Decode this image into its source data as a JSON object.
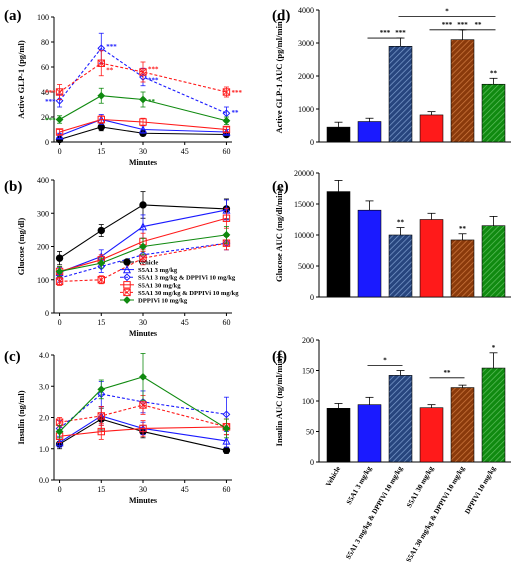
{
  "colors": {
    "vehicle": "#000000",
    "s5a1_3": "#1a1aff",
    "s5a1_3_dpp": "#1a1aff",
    "s5a1_30": "#ff1a1a",
    "s5a1_30_dpp": "#ff1a1a",
    "dpp": "#108a10",
    "bar_dpp_combo3": "#27457e",
    "bar_dpp_combo30": "#8a3a0b"
  },
  "legend_b": [
    {
      "key": "vehicle",
      "label": "Vehicle",
      "marker": "circle",
      "dash": false
    },
    {
      "key": "s5a1_3",
      "label": "S5A1 3 mg/kg",
      "marker": "triangle",
      "dash": false
    },
    {
      "key": "s5a1_3_dpp",
      "label": "S5A1 3 mg/kg & DPPIVi 10 mg/kg",
      "marker": "diamond",
      "dash": true
    },
    {
      "key": "s5a1_30",
      "label": "S5A1 30 mg/kg",
      "marker": "square",
      "dash": false
    },
    {
      "key": "s5a1_30_dpp",
      "label": "S5A1 30 mg/kg & DPPIVi 10 mg/kg",
      "marker": "squarex",
      "dash": true
    },
    {
      "key": "dpp",
      "label": "DPPIVi 10 mg/kg",
      "marker": "diamondfill",
      "dash": false
    }
  ],
  "chart_data": [
    {
      "panel": "(a)",
      "type": "line",
      "xlabel": "Minutes",
      "ylabel": "Active GLP-1 (pg/ml)",
      "xticks": [
        0,
        15,
        30,
        45,
        60
      ],
      "ylim": [
        0,
        100
      ],
      "yticks": [
        0,
        20,
        40,
        60,
        80,
        100
      ],
      "x": [
        0,
        15,
        30,
        60
      ],
      "series": [
        {
          "key": "vehicle",
          "values": [
            2,
            12,
            7,
            6
          ],
          "err": [
            1,
            3,
            2,
            1
          ]
        },
        {
          "key": "s5a1_3",
          "values": [
            5,
            18,
            10,
            8
          ],
          "err": [
            2,
            4,
            3,
            2
          ]
        },
        {
          "key": "s5a1_3_dpp",
          "values": [
            33,
            75,
            52,
            23
          ],
          "err": [
            5,
            12,
            7,
            5
          ]
        },
        {
          "key": "s5a1_30",
          "values": [
            8,
            18,
            16,
            10
          ],
          "err": [
            2,
            3,
            3,
            2
          ]
        },
        {
          "key": "s5a1_30_dpp",
          "values": [
            40,
            63,
            56,
            40
          ],
          "err": [
            6,
            10,
            8,
            4
          ]
        },
        {
          "key": "dpp",
          "values": [
            18,
            37,
            34,
            17
          ],
          "err": [
            3,
            6,
            6,
            3
          ]
        }
      ],
      "annotations": [
        {
          "x": 0,
          "y": 40,
          "text": "***",
          "color": "s5a1_30_dpp",
          "side": "left"
        },
        {
          "x": 0,
          "y": 33,
          "text": "***",
          "color": "s5a1_3_dpp",
          "side": "left"
        },
        {
          "x": 0,
          "y": 18,
          "text": "***",
          "color": "dpp",
          "side": "left"
        },
        {
          "x": 15,
          "y": 77,
          "text": "***",
          "color": "s5a1_3_dpp",
          "side": "right"
        },
        {
          "x": 15,
          "y": 58,
          "text": "**",
          "color": "s5a1_30_dpp",
          "side": "right"
        },
        {
          "x": 30,
          "y": 59,
          "text": "***",
          "color": "s5a1_30_dpp",
          "side": "right"
        },
        {
          "x": 30,
          "y": 50,
          "text": "***",
          "color": "s5a1_3_dpp",
          "side": "right"
        },
        {
          "x": 30,
          "y": 33,
          "text": "**",
          "color": "dpp",
          "side": "right"
        },
        {
          "x": 60,
          "y": 40,
          "text": "***",
          "color": "s5a1_30_dpp",
          "side": "right"
        },
        {
          "x": 60,
          "y": 24,
          "text": "**",
          "color": "s5a1_3_dpp",
          "side": "right"
        }
      ]
    },
    {
      "panel": "(b)",
      "type": "line",
      "xlabel": "Minutes",
      "ylabel": "Glucose (mg/dl)",
      "xticks": [
        0,
        15,
        30,
        45,
        60
      ],
      "ylim": [
        0,
        400
      ],
      "yticks": [
        0,
        100,
        200,
        300,
        400
      ],
      "x": [
        0,
        15,
        30,
        60
      ],
      "series": [
        {
          "key": "vehicle",
          "values": [
            165,
            248,
            325,
            313
          ],
          "err": [
            20,
            18,
            40,
            30
          ]
        },
        {
          "key": "s5a1_3",
          "values": [
            122,
            170,
            260,
            310
          ],
          "err": [
            15,
            20,
            35,
            30
          ]
        },
        {
          "key": "s5a1_3_dpp",
          "values": [
            105,
            140,
            175,
            210
          ],
          "err": [
            12,
            18,
            20,
            20
          ]
        },
        {
          "key": "s5a1_30",
          "values": [
            125,
            160,
            215,
            285
          ],
          "err": [
            15,
            15,
            25,
            30
          ]
        },
        {
          "key": "s5a1_30_dpp",
          "values": [
            95,
            100,
            165,
            210
          ],
          "err": [
            12,
            12,
            20,
            20
          ]
        },
        {
          "key": "dpp",
          "values": [
            125,
            150,
            200,
            235
          ],
          "err": [
            15,
            15,
            25,
            25
          ]
        }
      ],
      "annotations": []
    },
    {
      "panel": "(c)",
      "type": "line",
      "xlabel": "Minutes",
      "ylabel": "Insulin (ng/ml)",
      "xticks": [
        0,
        15,
        30,
        45,
        60
      ],
      "ylim": [
        0.0,
        4.0
      ],
      "yticks": [
        "0.0",
        "1.0",
        "2.0",
        "3.0",
        "4.0"
      ],
      "x": [
        0,
        15,
        30,
        60
      ],
      "series": [
        {
          "key": "vehicle",
          "values": [
            1.15,
            1.95,
            1.55,
            0.95
          ],
          "err": [
            0.15,
            0.35,
            0.2,
            0.1
          ]
        },
        {
          "key": "s5a1_3",
          "values": [
            1.2,
            2.05,
            1.65,
            1.25
          ],
          "err": [
            0.15,
            0.3,
            0.2,
            0.2
          ]
        },
        {
          "key": "s5a1_3_dpp",
          "values": [
            1.65,
            2.75,
            2.5,
            2.1
          ],
          "err": [
            0.25,
            0.4,
            0.35,
            0.55
          ]
        },
        {
          "key": "s5a1_30",
          "values": [
            1.4,
            1.55,
            1.65,
            1.7
          ],
          "err": [
            0.2,
            0.25,
            0.25,
            0.25
          ]
        },
        {
          "key": "s5a1_30_dpp",
          "values": [
            1.85,
            2.05,
            2.4,
            1.7
          ],
          "err": [
            0.15,
            0.3,
            0.3,
            0.25
          ]
        },
        {
          "key": "dpp",
          "values": [
            1.55,
            2.9,
            3.3,
            1.65
          ],
          "err": [
            0.2,
            0.3,
            0.75,
            0.3
          ]
        }
      ],
      "annotations": []
    },
    {
      "panel": "(d)",
      "type": "bar",
      "ylabel": "Active GLP-1 AUC (pg/ml/min)",
      "ylim": [
        0,
        4000
      ],
      "yticks": [
        0,
        1000,
        2000,
        3000,
        4000
      ],
      "categories": [
        "Vehicle",
        "S5A1 3 mg/kg",
        "S5A1 3 mg/kg & DPPIVi 10 mg/kg",
        "S5A1 30 mg/kg",
        "S5A1 30 mg/kg & DPPIVi 10 mg/kg",
        "DPPIVi 10 mg/kg"
      ],
      "values": [
        450,
        620,
        2900,
        820,
        3100,
        1750
      ],
      "err": [
        150,
        100,
        250,
        100,
        300,
        180
      ],
      "stars": [
        "",
        "",
        "***",
        "",
        "***",
        "**"
      ],
      "brackets": [
        {
          "from": 1,
          "to": 2,
          "y": 3150,
          "text": "***"
        },
        {
          "from": 3,
          "to": 4,
          "y": 3400,
          "text": "***"
        },
        {
          "from": 4,
          "to": 5,
          "y": 3400,
          "text": "**"
        },
        {
          "from": 2,
          "to": 5,
          "y": 3800,
          "text": "*"
        }
      ]
    },
    {
      "panel": "(e)",
      "type": "bar",
      "ylabel": "Glucose AUC (mg/dl/min)",
      "ylim": [
        0,
        20000
      ],
      "yticks": [
        0,
        5000,
        10000,
        15000,
        20000
      ],
      "categories": [
        "Vehicle",
        "S5A1 3 mg/kg",
        "S5A1 3 mg/kg & DPPIVi 10 mg/kg",
        "S5A1 30 mg/kg",
        "S5A1 30 mg/kg & DPPIVi 10 mg/kg",
        "DPPIVi 10 mg/kg"
      ],
      "values": [
        17000,
        14000,
        10000,
        12500,
        9200,
        11500
      ],
      "err": [
        1800,
        1500,
        1200,
        1000,
        1000,
        1500
      ],
      "stars": [
        "",
        "",
        "**",
        "",
        "**",
        ""
      ],
      "brackets": []
    },
    {
      "panel": "(f)",
      "type": "bar",
      "ylabel": "Insulin AUC (ng/ml/min)",
      "ylim": [
        0,
        200
      ],
      "yticks": [
        0,
        50,
        100,
        150,
        200
      ],
      "categories": [
        "Vehicle",
        "S5A1 3 mg/kg",
        "S5A1 3 mg/kg & DPPIVi 10 mg/kg",
        "S5A1 30 mg/kg",
        "S5A1 30 mg/kg & DPPIVi 10 mg/kg",
        "DPPIVi 10 mg/kg"
      ],
      "values": [
        88,
        94,
        142,
        89,
        122,
        154
      ],
      "err": [
        8,
        12,
        8,
        5,
        4,
        25
      ],
      "stars": [
        "",
        "",
        "",
        "",
        "",
        "*"
      ],
      "brackets": [
        {
          "from": 1,
          "to": 2,
          "y": 158,
          "text": "*"
        },
        {
          "from": 3,
          "to": 4,
          "y": 138,
          "text": "**"
        }
      ]
    }
  ]
}
